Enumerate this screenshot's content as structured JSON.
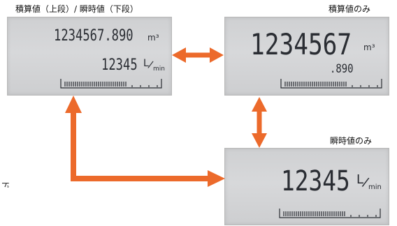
{
  "labels": {
    "panel1": "積算値（上段）/ 瞬時値（下段）",
    "panel2": "積算値のみ",
    "panel3": "瞬時値のみ"
  },
  "panel1": {
    "upper_value": "1234567.890",
    "upper_unit": "m³",
    "lower_value": "12345",
    "lower_unit_top": "L",
    "lower_unit_bottom": "min"
  },
  "panel2": {
    "value": "1234567",
    "decimal": ".890",
    "unit": "m³"
  },
  "panel3": {
    "value": "12345",
    "unit_top": "L",
    "unit_bottom": "min"
  },
  "side_char": "ド",
  "colors": {
    "arrow": "#ec6a2b",
    "lcd_bg": "#d2d3d5",
    "lcd_text": "#2a2d33"
  }
}
